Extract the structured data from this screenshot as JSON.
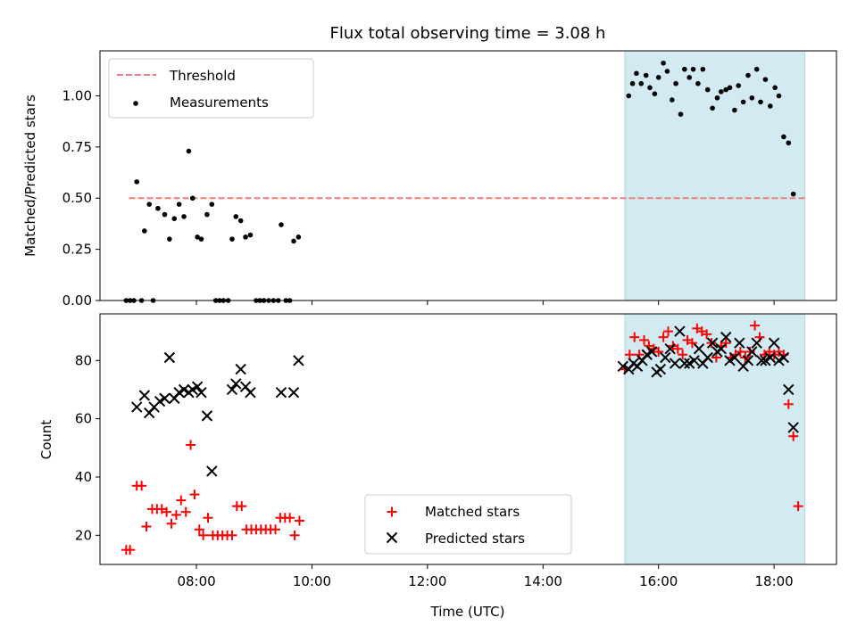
{
  "title": "Flux total observing time = 3.08 h",
  "colors": {
    "threshold": "#f08080",
    "measurement": "#000000",
    "matched": "#ff0000",
    "predicted": "#000000",
    "shade": "#add8e6"
  },
  "chart_data": [
    {
      "type": "scatter",
      "ylabel": "Matched/Predicted stars",
      "xlabel": "",
      "xlim": [
        6.33,
        19.08
      ],
      "ylim": [
        0.0,
        1.22
      ],
      "yticks": [
        0.0,
        0.25,
        0.5,
        0.75,
        1.0
      ],
      "ytick_labels": [
        "0.00",
        "0.25",
        "0.50",
        "0.75",
        "1.00"
      ],
      "grid": false,
      "legend_position": "upper-left",
      "legend": [
        "Threshold",
        "Measurements"
      ],
      "shaded_x_range": [
        "15:25",
        "18:32"
      ],
      "threshold": {
        "name": "Threshold",
        "y": 0.5,
        "x_range": [
          "06:50",
          "18:32"
        ]
      },
      "series": [
        {
          "name": "Measurements",
          "points": [
            [
              "06:47",
              0.0
            ],
            [
              "06:51",
              0.0
            ],
            [
              "06:55",
              0.0
            ],
            [
              "06:58",
              0.58
            ],
            [
              "07:03",
              0.0
            ],
            [
              "07:06",
              0.34
            ],
            [
              "07:11",
              0.47
            ],
            [
              "07:15",
              0.0
            ],
            [
              "07:20",
              0.45
            ],
            [
              "07:27",
              0.42
            ],
            [
              "07:32",
              0.3
            ],
            [
              "07:37",
              0.4
            ],
            [
              "07:42",
              0.47
            ],
            [
              "07:47",
              0.41
            ],
            [
              "07:52",
              0.73
            ],
            [
              "07:56",
              0.5
            ],
            [
              "08:01",
              0.31
            ],
            [
              "08:05",
              0.3
            ],
            [
              "08:11",
              0.42
            ],
            [
              "08:16",
              0.47
            ],
            [
              "08:20",
              0.0
            ],
            [
              "08:24",
              0.0
            ],
            [
              "08:28",
              0.0
            ],
            [
              "08:33",
              0.0
            ],
            [
              "08:37",
              0.3
            ],
            [
              "08:41",
              0.41
            ],
            [
              "08:46",
              0.39
            ],
            [
              "08:51",
              0.31
            ],
            [
              "08:56",
              0.32
            ],
            [
              "09:02",
              0.0
            ],
            [
              "09:06",
              0.0
            ],
            [
              "09:10",
              0.0
            ],
            [
              "09:15",
              0.0
            ],
            [
              "09:20",
              0.0
            ],
            [
              "09:25",
              0.0
            ],
            [
              "09:28",
              0.37
            ],
            [
              "09:33",
              0.0
            ],
            [
              "09:37",
              0.0
            ],
            [
              "09:41",
              0.29
            ],
            [
              "09:46",
              0.31
            ],
            [
              "15:29",
              1.0
            ],
            [
              "15:33",
              1.06
            ],
            [
              "15:37",
              1.11
            ],
            [
              "15:42",
              1.06
            ],
            [
              "15:47",
              1.1
            ],
            [
              "15:51",
              1.04
            ],
            [
              "15:56",
              1.01
            ],
            [
              "16:00",
              1.09
            ],
            [
              "16:05",
              1.16
            ],
            [
              "16:09",
              1.12
            ],
            [
              "16:14",
              0.98
            ],
            [
              "16:18",
              1.06
            ],
            [
              "16:23",
              0.91
            ],
            [
              "16:27",
              1.13
            ],
            [
              "16:32",
              1.09
            ],
            [
              "16:36",
              1.13
            ],
            [
              "16:41",
              1.06
            ],
            [
              "16:46",
              1.13
            ],
            [
              "16:51",
              1.03
            ],
            [
              "16:56",
              0.94
            ],
            [
              "17:01",
              0.99
            ],
            [
              "17:05",
              1.02
            ],
            [
              "17:10",
              1.03
            ],
            [
              "17:14",
              1.04
            ],
            [
              "17:19",
              0.93
            ],
            [
              "17:23",
              1.05
            ],
            [
              "17:28",
              0.97
            ],
            [
              "17:33",
              1.1
            ],
            [
              "17:37",
              0.99
            ],
            [
              "17:42",
              1.13
            ],
            [
              "17:46",
              0.97
            ],
            [
              "17:51",
              1.08
            ],
            [
              "17:56",
              0.95
            ],
            [
              "18:01",
              1.04
            ],
            [
              "18:05",
              1.0
            ],
            [
              "18:10",
              0.8
            ],
            [
              "18:15",
              0.77
            ],
            [
              "18:20",
              0.52
            ]
          ]
        }
      ]
    },
    {
      "type": "scatter",
      "ylabel": "Count",
      "xlabel": "Time (UTC)",
      "xlim": [
        6.33,
        19.08
      ],
      "ylim": [
        10,
        96
      ],
      "yticks": [
        20,
        40,
        60,
        80
      ],
      "xticks": [
        "08:00",
        "10:00",
        "12:00",
        "14:00",
        "16:00",
        "18:00"
      ],
      "grid": false,
      "legend_position": "lower-center",
      "legend": [
        "Matched stars",
        "Predicted stars"
      ],
      "shaded_x_range": [
        "15:25",
        "18:32"
      ],
      "series": [
        {
          "name": "Matched stars",
          "marker": "+",
          "points": [
            [
              "06:47",
              15
            ],
            [
              "06:51",
              15
            ],
            [
              "06:58",
              37
            ],
            [
              "07:03",
              37
            ],
            [
              "07:08",
              23
            ],
            [
              "07:14",
              29
            ],
            [
              "07:19",
              29
            ],
            [
              "07:24",
              29
            ],
            [
              "07:29",
              28
            ],
            [
              "07:34",
              24
            ],
            [
              "07:39",
              27
            ],
            [
              "07:44",
              32
            ],
            [
              "07:49",
              28
            ],
            [
              "07:54",
              51
            ],
            [
              "07:58",
              34
            ],
            [
              "08:03",
              22
            ],
            [
              "08:07",
              20
            ],
            [
              "08:12",
              26
            ],
            [
              "08:17",
              20
            ],
            [
              "08:22",
              20
            ],
            [
              "08:27",
              20
            ],
            [
              "08:32",
              20
            ],
            [
              "08:37",
              20
            ],
            [
              "08:42",
              30
            ],
            [
              "08:47",
              30
            ],
            [
              "08:52",
              22
            ],
            [
              "08:57",
              22
            ],
            [
              "09:02",
              22
            ],
            [
              "09:07",
              22
            ],
            [
              "09:12",
              22
            ],
            [
              "09:17",
              22
            ],
            [
              "09:22",
              22
            ],
            [
              "09:27",
              26
            ],
            [
              "09:32",
              26
            ],
            [
              "09:37",
              26
            ],
            [
              "09:42",
              20
            ],
            [
              "09:47",
              25
            ],
            [
              "15:25",
              77
            ],
            [
              "15:30",
              82
            ],
            [
              "15:35",
              88
            ],
            [
              "15:40",
              82
            ],
            [
              "15:45",
              87
            ],
            [
              "15:50",
              85
            ],
            [
              "15:55",
              84
            ],
            [
              "16:00",
              83
            ],
            [
              "16:05",
              88
            ],
            [
              "16:10",
              90
            ],
            [
              "16:15",
              85
            ],
            [
              "16:20",
              84
            ],
            [
              "16:25",
              82
            ],
            [
              "16:30",
              87
            ],
            [
              "16:35",
              86
            ],
            [
              "16:40",
              91
            ],
            [
              "16:45",
              90
            ],
            [
              "16:50",
              89
            ],
            [
              "16:55",
              86
            ],
            [
              "17:00",
              81
            ],
            [
              "17:05",
              85
            ],
            [
              "17:10",
              86
            ],
            [
              "17:15",
              81
            ],
            [
              "17:20",
              82
            ],
            [
              "17:25",
              83
            ],
            [
              "17:30",
              81
            ],
            [
              "17:35",
              83
            ],
            [
              "17:40",
              92
            ],
            [
              "17:45",
              88
            ],
            [
              "17:50",
              82
            ],
            [
              "17:55",
              83
            ],
            [
              "18:00",
              82
            ],
            [
              "18:05",
              83
            ],
            [
              "18:10",
              82
            ],
            [
              "18:15",
              65
            ],
            [
              "18:20",
              54
            ],
            [
              "18:25",
              30
            ]
          ]
        },
        {
          "name": "Predicted stars",
          "marker": "x",
          "points": [
            [
              "06:58",
              64
            ],
            [
              "07:06",
              68
            ],
            [
              "07:11",
              62
            ],
            [
              "07:16",
              64
            ],
            [
              "07:22",
              66
            ],
            [
              "07:27",
              67
            ],
            [
              "07:32",
              81
            ],
            [
              "07:37",
              67
            ],
            [
              "07:42",
              69
            ],
            [
              "07:47",
              70
            ],
            [
              "07:52",
              69
            ],
            [
              "07:56",
              70
            ],
            [
              "08:01",
              71
            ],
            [
              "08:05",
              69
            ],
            [
              "08:11",
              61
            ],
            [
              "08:16",
              42
            ],
            [
              "08:37",
              70
            ],
            [
              "08:41",
              72
            ],
            [
              "08:46",
              77
            ],
            [
              "08:51",
              71
            ],
            [
              "08:56",
              69
            ],
            [
              "09:28",
              69
            ],
            [
              "09:41",
              69
            ],
            [
              "09:46",
              80
            ],
            [
              "15:23",
              78
            ],
            [
              "15:29",
              77
            ],
            [
              "15:34",
              79
            ],
            [
              "15:38",
              78
            ],
            [
              "15:43",
              80
            ],
            [
              "15:48",
              82
            ],
            [
              "15:53",
              83
            ],
            [
              "15:58",
              76
            ],
            [
              "16:02",
              77
            ],
            [
              "16:07",
              81
            ],
            [
              "16:12",
              84
            ],
            [
              "16:17",
              79
            ],
            [
              "16:22",
              90
            ],
            [
              "16:27",
              79
            ],
            [
              "16:32",
              79
            ],
            [
              "16:37",
              80
            ],
            [
              "16:42",
              84
            ],
            [
              "16:46",
              79
            ],
            [
              "16:51",
              81
            ],
            [
              "16:56",
              86
            ],
            [
              "17:01",
              83
            ],
            [
              "17:05",
              84
            ],
            [
              "17:10",
              88
            ],
            [
              "17:14",
              80
            ],
            [
              "17:19",
              81
            ],
            [
              "17:24",
              86
            ],
            [
              "17:28",
              78
            ],
            [
              "17:33",
              80
            ],
            [
              "17:37",
              83
            ],
            [
              "17:42",
              86
            ],
            [
              "17:47",
              80
            ],
            [
              "17:51",
              80
            ],
            [
              "17:56",
              81
            ],
            [
              "18:00",
              86
            ],
            [
              "18:05",
              80
            ],
            [
              "18:10",
              81
            ],
            [
              "18:15",
              70
            ],
            [
              "18:20",
              57
            ]
          ]
        }
      ]
    }
  ]
}
